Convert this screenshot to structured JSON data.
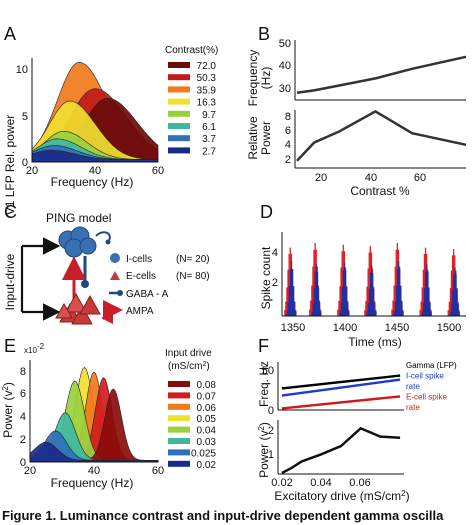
{
  "panels": {
    "A": {
      "label": "A",
      "ylabel": "V1 LFP Rel. power",
      "xlabel": "Frequency (Hz)",
      "legend_title": "Contrast(%)",
      "legend": [
        {
          "label": "72.0",
          "color": "#6b0c0c"
        },
        {
          "label": "50.3",
          "color": "#c01a1a"
        },
        {
          "label": "35.9",
          "color": "#f07a1a"
        },
        {
          "label": "16.3",
          "color": "#f0e030"
        },
        {
          "label": "9.7",
          "color": "#9ad040"
        },
        {
          "label": "6.1",
          "color": "#40b8a0"
        },
        {
          "label": "3.7",
          "color": "#3070b8"
        },
        {
          "label": "2.7",
          "color": "#1a2a8a"
        }
      ],
      "x_ticks": [
        "20",
        "40",
        "60"
      ],
      "y_ticks": [
        "0",
        "5",
        "10"
      ]
    },
    "B": {
      "label": "B",
      "top_ylabel_1": "Frequency",
      "top_ylabel_2": "(Hz)",
      "bottom_ylabel_1": "Relative",
      "bottom_ylabel_2": "Power",
      "xlabel": "Contrast %",
      "top_y_ticks": [
        "30",
        "40",
        "50"
      ],
      "bottom_y_ticks": [
        "2",
        "4",
        "6",
        "8"
      ],
      "x_ticks": [
        "20",
        "40",
        "60"
      ]
    },
    "C": {
      "label": "C",
      "title": "PING model",
      "side_label": "Input-drive",
      "legend": [
        {
          "symbol": "circle",
          "label": "I-cells",
          "count": "(N= 20)"
        },
        {
          "symbol": "triangle",
          "label": "E-cells",
          "count": "(N= 80)"
        },
        {
          "symbol": "bar",
          "label": "GABA - A",
          "count": ""
        },
        {
          "symbol": "arrow",
          "label": "AMPA",
          "count": ""
        }
      ]
    },
    "D": {
      "label": "D",
      "ylabel": "Spike count",
      "xlabel": "Time (ms)",
      "x_ticks": [
        "1350",
        "1400",
        "1450",
        "1500"
      ],
      "y_ticks": [
        "2",
        "4"
      ]
    },
    "E": {
      "label": "E",
      "yexp": "x10",
      "yexp_power": "-2",
      "ylabel": "Power (v",
      "ylabel_sup": "2",
      "ylabel_end": ")",
      "xlabel": "Frequency (Hz)",
      "legend_title_1": "Input drive",
      "legend_title_2": "(mS/cm",
      "legend_title_sup": "2",
      "legend_title_end": ")",
      "legend": [
        {
          "label": "0.08",
          "color": "#8a0c0c"
        },
        {
          "label": "0.07",
          "color": "#d21c1c"
        },
        {
          "label": "0.06",
          "color": "#f07a1a"
        },
        {
          "label": "0.05",
          "color": "#f0e030"
        },
        {
          "label": "0.04",
          "color": "#9ad040"
        },
        {
          "label": "0.03",
          "color": "#40b8a0"
        },
        {
          "label": "0.025",
          "color": "#3070b8"
        },
        {
          "label": "0.02",
          "color": "#1a2a8a"
        }
      ],
      "x_ticks": [
        "20",
        "40",
        "60"
      ],
      "y_ticks": [
        "0",
        "2",
        "4",
        "6",
        "8"
      ]
    },
    "F": {
      "label": "F",
      "top_ylabel": "Freq. Hz",
      "top_y_ticks": [
        "0",
        "50"
      ],
      "legend": [
        {
          "label": "Gamma (LFP)",
          "color": "#000000"
        },
        {
          "label": "I-cell spike",
          "color": "#1a3ad0"
        },
        {
          "label": "rate",
          "color": "#1a3ad0"
        },
        {
          "label": "E-cell spike",
          "color": "#d01a1a"
        },
        {
          "label": "rate",
          "color": "#d01a1a"
        }
      ],
      "bottom_ylabel": "Power (v",
      "bottom_ylabel_sup": "2",
      "bottom_ylabel_end": ")",
      "bottom_y_ticks": [
        "1",
        "2"
      ],
      "x_ticks": [
        "0.02",
        "0.04",
        "0.06"
      ],
      "xlabel": "Excitatory drive (mS/cm",
      "xlabel_sup": "2",
      "xlabel_end": ")"
    }
  },
  "caption": "Figure 1. Luminance contrast and input-drive dependent gamma oscilla",
  "chart_data": [
    {
      "type": "area",
      "panel": "A",
      "xlabel": "Frequency (Hz)",
      "ylabel": "V1 LFP Rel. power",
      "xlim": [
        20,
        60
      ],
      "ylim": [
        0,
        11
      ],
      "series": [
        {
          "name": "72.0",
          "color": "#6b0c0c",
          "peak_x": 44,
          "peak_y": 6.5,
          "width": 7.5
        },
        {
          "name": "50.3",
          "color": "#c01a1a",
          "peak_x": 40,
          "peak_y": 7.5,
          "width": 8
        },
        {
          "name": "35.9",
          "color": "#f07a1a",
          "peak_x": 35,
          "peak_y": 10.3,
          "width": 7
        },
        {
          "name": "16.3",
          "color": "#f0e030",
          "peak_x": 32,
          "peak_y": 6.2,
          "width": 6.5
        },
        {
          "name": "9.7",
          "color": "#9ad040",
          "peak_x": 30,
          "peak_y": 3.0,
          "width": 6
        },
        {
          "name": "6.1",
          "color": "#40b8a0",
          "peak_x": 28,
          "peak_y": 2.2,
          "width": 6
        },
        {
          "name": "3.7",
          "color": "#3070b8",
          "peak_x": 27,
          "peak_y": 1.5,
          "width": 6
        },
        {
          "name": "2.7",
          "color": "#1a2a8a",
          "peak_x": 26,
          "peak_y": 1.0,
          "width": 6
        }
      ]
    },
    {
      "type": "line",
      "panel": "B-top",
      "xlabel": "Contrast %",
      "ylabel": "Frequency (Hz)",
      "xlim": [
        3,
        72
      ],
      "ylim": [
        25,
        50
      ],
      "x": [
        3,
        10,
        20,
        35,
        50,
        72
      ],
      "values": [
        28,
        29,
        31,
        34,
        38,
        43
      ]
    },
    {
      "type": "line",
      "panel": "B-bottom",
      "xlabel": "Contrast %",
      "ylabel": "Relative Power",
      "xlim": [
        3,
        72
      ],
      "ylim": [
        1,
        9
      ],
      "x": [
        3,
        10,
        20,
        35,
        50,
        72
      ],
      "values": [
        2,
        4.5,
        6,
        8.8,
        5.8,
        4.2
      ]
    },
    {
      "type": "bar",
      "panel": "D",
      "xlabel": "Time (ms)",
      "ylabel": "Spike count",
      "xlim": [
        1345,
        1515
      ],
      "ylim": [
        0,
        5
      ],
      "burst_times": [
        1352,
        1375,
        1401,
        1426,
        1451,
        1477,
        1503
      ],
      "series": [
        {
          "name": "E-cells",
          "color": "#e02020",
          "peaks": [
            4.5,
            4.8,
            4.7,
            4.6,
            4.8,
            4.5,
            4.4
          ]
        },
        {
          "name": "I-cells",
          "color": "#2030a0",
          "peaks": [
            3.6,
            3.4,
            3.5,
            3.3,
            3.6,
            3.4,
            3.2
          ]
        }
      ]
    },
    {
      "type": "area",
      "panel": "E",
      "xlabel": "Frequency (Hz)",
      "ylabel": "Power (v2)",
      "xlim": [
        20,
        60
      ],
      "ylim": [
        0,
        9
      ],
      "series": [
        {
          "name": "0.08",
          "color": "#8a0c0c",
          "peak_x": 46,
          "peak_y": 6.3,
          "width": 2.6
        },
        {
          "name": "0.07",
          "color": "#d21c1c",
          "peak_x": 43,
          "peak_y": 7.3,
          "width": 2.6
        },
        {
          "name": "0.06",
          "color": "#f07a1a",
          "peak_x": 40,
          "peak_y": 7.8,
          "width": 2.6
        },
        {
          "name": "0.05",
          "color": "#f0e030",
          "peak_x": 37,
          "peak_y": 8.2,
          "width": 2.8
        },
        {
          "name": "0.04",
          "color": "#9ad040",
          "peak_x": 34,
          "peak_y": 7.0,
          "width": 3.0
        },
        {
          "name": "0.03",
          "color": "#40b8a0",
          "peak_x": 31,
          "peak_y": 4.2,
          "width": 3.2
        },
        {
          "name": "0.025",
          "color": "#3070b8",
          "peak_x": 28,
          "peak_y": 2.6,
          "width": 3.4
        },
        {
          "name": "0.02",
          "color": "#1a2a8a",
          "peak_x": 25,
          "peak_y": 1.6,
          "width": 3.6
        }
      ]
    },
    {
      "type": "line",
      "panel": "F-top",
      "ylabel": "Freq. Hz",
      "xlim": [
        0.018,
        0.082
      ],
      "ylim": [
        0,
        60
      ],
      "x": [
        0.02,
        0.08
      ],
      "series": [
        {
          "name": "Gamma (LFP)",
          "color": "#000000",
          "values": [
            27,
            43
          ]
        },
        {
          "name": "I-cell spike rate",
          "color": "#1a3ad0",
          "values": [
            18,
            38
          ]
        },
        {
          "name": "E-cell spike rate",
          "color": "#d01a1a",
          "values": [
            2,
            17
          ]
        }
      ]
    },
    {
      "type": "line",
      "panel": "F-bottom",
      "xlabel": "Excitatory drive (mS/cm2)",
      "ylabel": "Power (v2)",
      "xlim": [
        0.018,
        0.082
      ],
      "ylim": [
        0,
        2.6
      ],
      "x": [
        0.02,
        0.025,
        0.03,
        0.04,
        0.05,
        0.06,
        0.07,
        0.08
      ],
      "values": [
        0.05,
        0.3,
        0.6,
        0.95,
        1.35,
        2.2,
        1.8,
        1.75
      ]
    }
  ]
}
